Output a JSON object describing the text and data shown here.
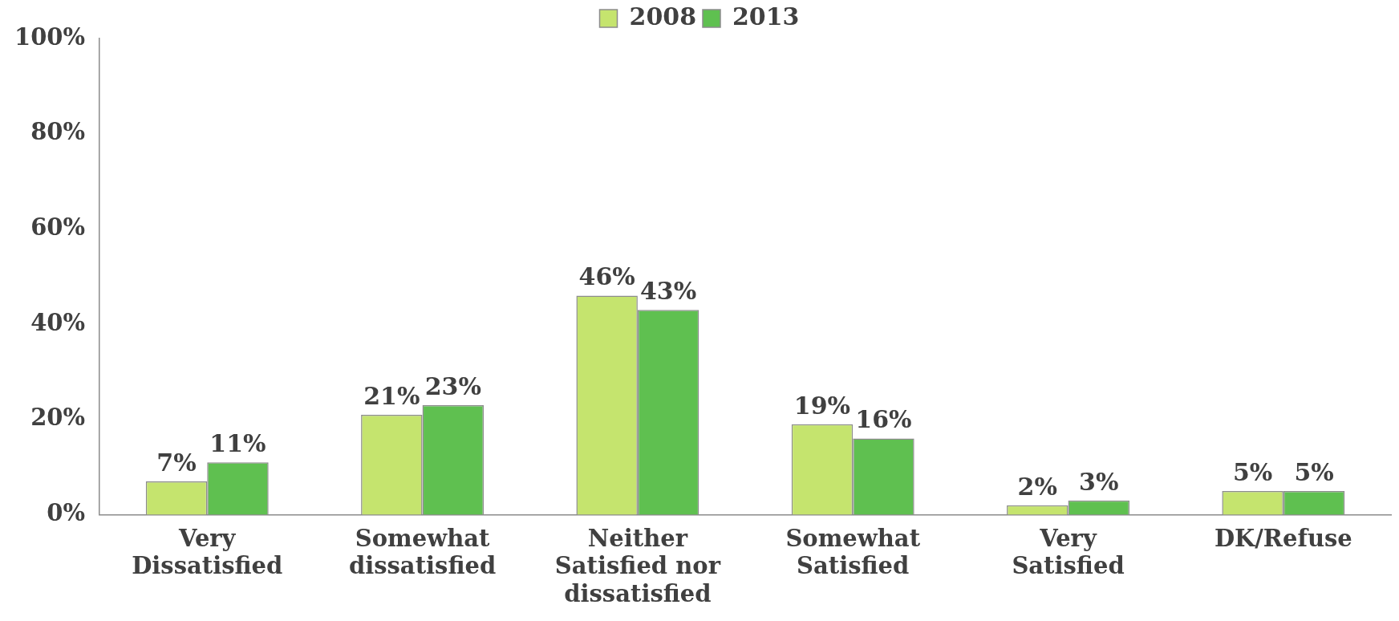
{
  "chart_data": {
    "type": "bar",
    "categories": [
      "Very Dissatisfied",
      "Somewhat dissatisfied",
      "Neither Satisfied nor dissatisfied",
      "Somewhat Satisfied",
      "Very Satisfied",
      "DK/Refuse"
    ],
    "series": [
      {
        "name": "2008",
        "color": "#c5e46e",
        "values": [
          7,
          21,
          46,
          19,
          2,
          5
        ],
        "value_labels": [
          "7%",
          "21%",
          "46%",
          "19%",
          "2%",
          "5%"
        ]
      },
      {
        "name": "2013",
        "color": "#5fc050",
        "values": [
          11,
          23,
          43,
          16,
          3,
          5
        ],
        "value_labels": [
          "11%",
          "23%",
          "43%",
          "16%",
          "3%",
          "5%"
        ]
      }
    ],
    "ylim": [
      0,
      100
    ],
    "yticks": [
      {
        "value": 0,
        "label": "0%"
      },
      {
        "value": 20,
        "label": "20%"
      },
      {
        "value": 40,
        "label": "40%"
      },
      {
        "value": 60,
        "label": "60%"
      },
      {
        "value": 80,
        "label": "80%"
      },
      {
        "value": 100,
        "label": "100%"
      }
    ],
    "legend": "top",
    "grid": false
  }
}
